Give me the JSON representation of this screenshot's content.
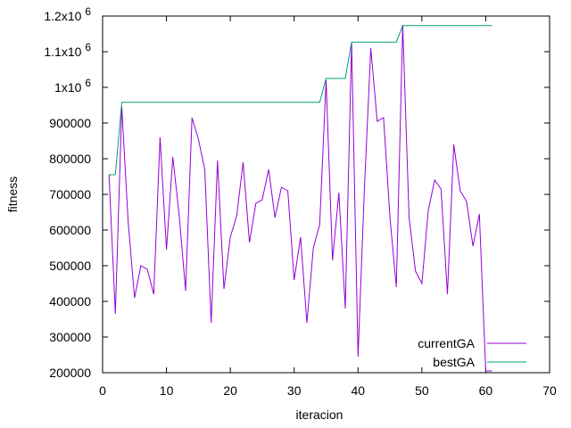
{
  "chart_data": {
    "type": "line",
    "xlabel": "iteracion",
    "ylabel": "fitness",
    "xlim": [
      0,
      70
    ],
    "ylim": [
      200000,
      1200000
    ],
    "x_ticks": [
      {
        "value": 0,
        "label": "0"
      },
      {
        "value": 10,
        "label": "10"
      },
      {
        "value": 20,
        "label": "20"
      },
      {
        "value": 30,
        "label": "30"
      },
      {
        "value": 40,
        "label": "40"
      },
      {
        "value": 50,
        "label": "50"
      },
      {
        "value": 60,
        "label": "60"
      },
      {
        "value": 70,
        "label": "70"
      }
    ],
    "y_ticks": [
      {
        "value": 200000,
        "label": "200000"
      },
      {
        "value": 300000,
        "label": "300000"
      },
      {
        "value": 400000,
        "label": "400000"
      },
      {
        "value": 500000,
        "label": "500000"
      },
      {
        "value": 600000,
        "label": "600000"
      },
      {
        "value": 700000,
        "label": "700000"
      },
      {
        "value": 800000,
        "label": "800000"
      },
      {
        "value": 900000,
        "label": "900000"
      },
      {
        "value": 1000000,
        "label": "1x10",
        "exp": "6"
      },
      {
        "value": 1100000,
        "label": "1.1x10",
        "exp": "6"
      },
      {
        "value": 1200000,
        "label": "1.2x10",
        "exp": "6"
      }
    ],
    "grid": false,
    "legend_position": "bottom-right",
    "series": [
      {
        "name": "currentGA",
        "color": "#9400d3",
        "x": [
          1,
          2,
          3,
          4,
          5,
          6,
          7,
          8,
          9,
          10,
          11,
          12,
          13,
          14,
          15,
          16,
          17,
          18,
          19,
          20,
          21,
          22,
          23,
          24,
          25,
          26,
          27,
          28,
          29,
          30,
          31,
          32,
          33,
          34,
          35,
          36,
          37,
          38,
          39,
          40,
          41,
          42,
          43,
          44,
          45,
          46,
          47,
          48,
          49,
          50,
          51,
          52,
          53,
          54,
          55,
          56,
          57,
          58,
          59,
          60,
          61
        ],
        "y": [
          755000,
          365000,
          945000,
          625000,
          410000,
          500000,
          490000,
          420000,
          860000,
          545000,
          805000,
          640000,
          430000,
          915000,
          855000,
          770000,
          340000,
          795000,
          435000,
          580000,
          640000,
          790000,
          565000,
          675000,
          685000,
          770000,
          635000,
          720000,
          710000,
          460000,
          580000,
          340000,
          550000,
          615000,
          1020000,
          515000,
          705000,
          380000,
          1125000,
          245000,
          715000,
          1110000,
          905000,
          915000,
          635000,
          440000,
          1175000,
          635000,
          485000,
          450000,
          655000,
          740000,
          715000,
          420000,
          840000,
          710000,
          680000,
          555000,
          645000,
          205000,
          205000
        ]
      },
      {
        "name": "bestGA",
        "color": "#009e73",
        "x": [
          1,
          2,
          3,
          4,
          34,
          35,
          37,
          38,
          39,
          46,
          47,
          61
        ],
        "y": [
          755000,
          755000,
          958000,
          958000,
          958000,
          1025000,
          1025000,
          1025000,
          1127000,
          1127000,
          1173000,
          1173000
        ]
      }
    ]
  }
}
